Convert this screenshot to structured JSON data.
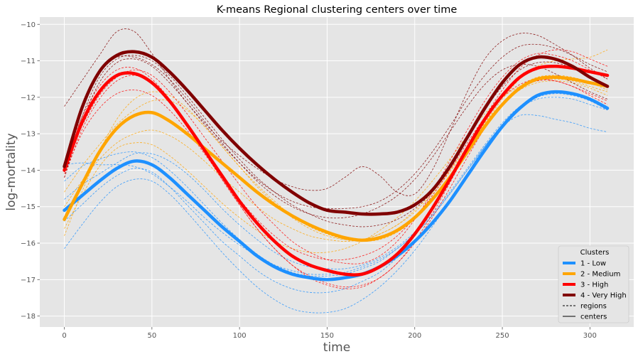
{
  "chart_data": {
    "type": "line",
    "title": "K-means Regional clustering centers over time",
    "xlabel": "time",
    "ylabel": "log-mortality",
    "xlim": [
      -14,
      325
    ],
    "ylim": [
      -18.3,
      -9.8
    ],
    "x_ticks": [
      0,
      50,
      100,
      150,
      200,
      250,
      300
    ],
    "y_ticks": [
      -10,
      -11,
      -12,
      -13,
      -14,
      -15,
      -16,
      -17,
      -18
    ],
    "x_tick_labels": [
      "0",
      "50",
      "100",
      "150",
      "200",
      "250",
      "300"
    ],
    "y_tick_labels": [
      "−10",
      "−11",
      "−12",
      "−13",
      "−14",
      "−15",
      "−16",
      "−17",
      "−18"
    ],
    "grid": true,
    "legend": {
      "title": "Clusters",
      "placement": "lower-right",
      "entries": [
        {
          "label": "1 - Low",
          "color": "#1e90ff",
          "style": "center"
        },
        {
          "label": "2 - Medium",
          "color": "#ffa500",
          "style": "center"
        },
        {
          "label": "3 - High",
          "color": "#ff0000",
          "style": "center"
        },
        {
          "label": "4 - Very High",
          "color": "#800000",
          "style": "center"
        },
        {
          "label": "regions",
          "color": "#000000",
          "style": "dashed"
        },
        {
          "label": "centers",
          "color": "#000000",
          "style": "solid"
        }
      ]
    },
    "x": [
      0,
      10,
      20,
      30,
      40,
      50,
      60,
      70,
      80,
      90,
      100,
      110,
      120,
      130,
      140,
      150,
      160,
      170,
      180,
      190,
      200,
      210,
      220,
      230,
      240,
      250,
      260,
      270,
      280,
      290,
      300,
      310
    ],
    "series": [
      {
        "name": "1 - Low",
        "kind": "center",
        "color": "#1e90ff",
        "values": [
          -15.1,
          -14.7,
          -14.3,
          -13.95,
          -13.75,
          -13.85,
          -14.2,
          -14.65,
          -15.1,
          -15.55,
          -15.95,
          -16.35,
          -16.65,
          -16.85,
          -16.95,
          -17.0,
          -16.95,
          -16.85,
          -16.65,
          -16.35,
          -15.95,
          -15.45,
          -14.85,
          -14.15,
          -13.45,
          -12.8,
          -12.3,
          -11.95,
          -11.85,
          -11.9,
          -12.05,
          -12.3
        ]
      },
      {
        "name": "2 - Medium",
        "kind": "center",
        "color": "#ffa500",
        "values": [
          -15.35,
          -14.4,
          -13.5,
          -12.85,
          -12.5,
          -12.42,
          -12.65,
          -13.0,
          -13.4,
          -13.8,
          -14.2,
          -14.6,
          -14.95,
          -15.25,
          -15.5,
          -15.7,
          -15.85,
          -15.92,
          -15.85,
          -15.65,
          -15.3,
          -14.8,
          -14.2,
          -13.5,
          -12.8,
          -12.2,
          -11.75,
          -11.5,
          -11.45,
          -11.5,
          -11.6,
          -11.7
        ]
      },
      {
        "name": "3 - High",
        "kind": "center",
        "color": "#ff0000",
        "values": [
          -14.0,
          -12.7,
          -11.85,
          -11.4,
          -11.35,
          -11.6,
          -12.1,
          -12.75,
          -13.45,
          -14.15,
          -14.85,
          -15.45,
          -15.95,
          -16.35,
          -16.6,
          -16.75,
          -16.85,
          -16.85,
          -16.65,
          -16.3,
          -15.75,
          -15.05,
          -14.25,
          -13.4,
          -12.6,
          -11.95,
          -11.45,
          -11.2,
          -11.15,
          -11.2,
          -11.3,
          -11.4
        ]
      },
      {
        "name": "4 - Very High",
        "kind": "center",
        "color": "#800000",
        "values": [
          -13.9,
          -12.3,
          -11.3,
          -10.85,
          -10.75,
          -10.9,
          -11.3,
          -11.8,
          -12.35,
          -12.9,
          -13.4,
          -13.85,
          -14.25,
          -14.6,
          -14.9,
          -15.1,
          -15.15,
          -15.2,
          -15.2,
          -15.15,
          -14.95,
          -14.55,
          -13.9,
          -13.1,
          -12.3,
          -11.6,
          -11.1,
          -10.9,
          -10.95,
          -11.15,
          -11.45,
          -11.7
        ]
      },
      {
        "name": "",
        "kind": "region",
        "color": "#1e90ff",
        "values": [
          -14.8,
          -14.4,
          -14.1,
          -13.8,
          -13.55,
          -13.55,
          -13.75,
          -14.1,
          -14.55,
          -15.05,
          -15.5,
          -15.9,
          -16.25,
          -16.5,
          -16.65,
          -16.7,
          -16.7,
          -16.6,
          -16.4,
          -16.1,
          -15.7,
          -15.2,
          -14.6,
          -13.95,
          -13.3,
          -12.7,
          -12.25,
          -11.95,
          -11.85,
          -11.9,
          -12.05,
          -12.25
        ]
      },
      {
        "name": "",
        "kind": "region",
        "color": "#1e90ff",
        "values": [
          -15.4,
          -14.95,
          -14.5,
          -14.15,
          -13.95,
          -14.05,
          -14.45,
          -14.95,
          -15.45,
          -15.95,
          -16.35,
          -16.75,
          -17.05,
          -17.25,
          -17.35,
          -17.35,
          -17.25,
          -17.05,
          -16.8,
          -16.4,
          -15.95,
          -15.4,
          -14.8,
          -14.1,
          -13.4,
          -12.8,
          -12.3,
          -12.0,
          -11.9,
          -11.95,
          -12.1,
          -12.35
        ]
      },
      {
        "name": "",
        "kind": "region",
        "color": "#1e90ff",
        "values": [
          -14.3,
          -13.9,
          -13.7,
          -13.55,
          -13.5,
          -13.65,
          -14.0,
          -14.45,
          -14.95,
          -15.45,
          -15.9,
          -16.3,
          -16.6,
          -16.8,
          -16.9,
          -16.9,
          -16.85,
          -16.7,
          -16.5,
          -16.15,
          -15.75,
          -15.25,
          -14.65,
          -14.0,
          -13.35,
          -12.75,
          -12.25,
          -11.95,
          -11.85,
          -11.9,
          -12.05,
          -12.3
        ]
      },
      {
        "name": "",
        "kind": "region",
        "color": "#1e90ff",
        "values": [
          -16.15,
          -15.5,
          -14.9,
          -14.45,
          -14.25,
          -14.3,
          -14.65,
          -15.15,
          -15.7,
          -16.25,
          -16.75,
          -17.2,
          -17.55,
          -17.8,
          -17.9,
          -17.9,
          -17.8,
          -17.55,
          -17.2,
          -16.75,
          -16.2,
          -15.55,
          -14.85,
          -14.1,
          -13.35,
          -12.8,
          -12.5,
          -12.5,
          -12.6,
          -12.7,
          -12.85,
          -12.95
        ]
      },
      {
        "name": "",
        "kind": "region",
        "color": "#1e90ff",
        "values": [
          -13.85,
          -13.8,
          -13.85,
          -13.85,
          -13.9,
          -14.1,
          -14.45,
          -14.85,
          -15.3,
          -15.7,
          -16.05,
          -16.35,
          -16.6,
          -16.75,
          -16.85,
          -16.85,
          -16.8,
          -16.65,
          -16.45,
          -16.15,
          -15.75,
          -15.25,
          -14.65,
          -14.0,
          -13.35,
          -12.75,
          -12.3,
          -12.05,
          -12.0,
          -12.05,
          -12.2,
          -12.35
        ]
      },
      {
        "name": "",
        "kind": "region",
        "color": "#ffa500",
        "values": [
          -15.8,
          -14.6,
          -13.5,
          -12.6,
          -12.05,
          -11.85,
          -11.95,
          -12.3,
          -12.8,
          -13.35,
          -13.9,
          -14.4,
          -14.85,
          -15.25,
          -15.55,
          -15.75,
          -15.9,
          -15.95,
          -15.9,
          -15.7,
          -15.35,
          -14.85,
          -14.2,
          -13.45,
          -12.7,
          -12.05,
          -11.5,
          -11.15,
          -11.0,
          -10.95,
          -10.9,
          -10.7
        ]
      },
      {
        "name": "",
        "kind": "region",
        "color": "#ffa500",
        "values": [
          -15.0,
          -14.3,
          -13.7,
          -13.25,
          -13.0,
          -12.9,
          -13.05,
          -13.35,
          -13.75,
          -14.2,
          -14.6,
          -15.0,
          -15.35,
          -15.6,
          -15.8,
          -15.9,
          -15.95,
          -15.9,
          -15.75,
          -15.5,
          -15.15,
          -14.65,
          -14.05,
          -13.4,
          -12.75,
          -12.2,
          -11.8,
          -11.6,
          -11.55,
          -11.6,
          -11.75,
          -11.95
        ]
      },
      {
        "name": "",
        "kind": "region",
        "color": "#ffa500",
        "values": [
          -14.6,
          -13.9,
          -13.3,
          -12.75,
          -12.35,
          -12.1,
          -12.1,
          -12.35,
          -12.8,
          -13.35,
          -13.9,
          -14.45,
          -14.9,
          -15.3,
          -15.6,
          -15.8,
          -15.9,
          -15.9,
          -15.75,
          -15.5,
          -15.1,
          -14.6,
          -14.0,
          -13.35,
          -12.7,
          -12.15,
          -11.7,
          -11.45,
          -11.4,
          -11.45,
          -11.6,
          -11.8
        ]
      },
      {
        "name": "",
        "kind": "region",
        "color": "#ffa500",
        "values": [
          -15.6,
          -14.7,
          -13.9,
          -13.4,
          -13.25,
          -13.3,
          -13.6,
          -14.0,
          -14.45,
          -14.9,
          -15.3,
          -15.65,
          -15.95,
          -16.15,
          -16.25,
          -16.25,
          -16.15,
          -15.95,
          -15.65,
          -15.3,
          -14.85,
          -14.3,
          -13.7,
          -13.05,
          -12.45,
          -12.0,
          -11.7,
          -11.55,
          -11.5,
          -11.55,
          -11.7,
          -11.85
        ]
      },
      {
        "name": "",
        "kind": "region",
        "color": "#ff0000",
        "values": [
          -14.2,
          -12.9,
          -12.05,
          -11.55,
          -11.4,
          -11.6,
          -12.1,
          -12.75,
          -13.5,
          -14.25,
          -14.95,
          -15.6,
          -16.15,
          -16.6,
          -16.95,
          -17.15,
          -17.25,
          -17.2,
          -16.95,
          -16.55,
          -15.95,
          -15.2,
          -14.35,
          -13.45,
          -12.55,
          -11.8,
          -11.2,
          -10.85,
          -10.7,
          -10.75,
          -10.95,
          -11.15
        ]
      },
      {
        "name": "",
        "kind": "region",
        "color": "#ff0000",
        "values": [
          -13.95,
          -12.8,
          -11.95,
          -11.45,
          -11.25,
          -11.4,
          -11.85,
          -12.45,
          -13.1,
          -13.75,
          -14.4,
          -15.0,
          -15.5,
          -15.95,
          -16.25,
          -16.45,
          -16.55,
          -16.55,
          -16.35,
          -15.95,
          -15.35,
          -14.6,
          -13.75,
          -12.9,
          -12.1,
          -11.45,
          -11.0,
          -10.8,
          -10.85,
          -11.0,
          -11.25,
          -11.5
        ]
      },
      {
        "name": "",
        "kind": "region",
        "color": "#ff0000",
        "values": [
          -13.8,
          -12.55,
          -11.7,
          -11.25,
          -11.2,
          -11.5,
          -12.05,
          -12.75,
          -13.5,
          -14.25,
          -14.95,
          -15.6,
          -16.15,
          -16.6,
          -16.9,
          -17.1,
          -17.2,
          -17.15,
          -16.95,
          -16.55,
          -16.0,
          -15.3,
          -14.5,
          -13.65,
          -12.85,
          -12.2,
          -11.75,
          -11.55,
          -11.55,
          -11.7,
          -11.9,
          -12.1
        ]
      },
      {
        "name": "",
        "kind": "region",
        "color": "#ff0000",
        "values": [
          -14.1,
          -13.0,
          -12.3,
          -11.9,
          -11.8,
          -11.95,
          -12.35,
          -12.9,
          -13.55,
          -14.2,
          -14.8,
          -15.35,
          -15.8,
          -16.15,
          -16.35,
          -16.45,
          -16.45,
          -16.35,
          -16.15,
          -15.8,
          -15.3,
          -14.7,
          -14.0,
          -13.25,
          -12.55,
          -12.0,
          -11.65,
          -11.5,
          -11.55,
          -11.7,
          -11.95,
          -12.2
        ]
      },
      {
        "name": "",
        "kind": "region",
        "color": "#800000",
        "values": [
          -12.25,
          -11.55,
          -10.85,
          -10.2,
          -10.2,
          -10.8,
          -11.5,
          -12.15,
          -12.7,
          -13.2,
          -13.6,
          -13.95,
          -14.25,
          -14.45,
          -14.55,
          -14.5,
          -14.2,
          -13.9,
          -14.15,
          -14.6,
          -14.65,
          -14.0,
          -12.95,
          -11.85,
          -10.95,
          -10.45,
          -10.25,
          -10.3,
          -10.55,
          -10.85,
          -11.2,
          -11.5
        ]
      },
      {
        "name": "",
        "kind": "region",
        "color": "#800000",
        "values": [
          -14.05,
          -12.55,
          -11.45,
          -10.95,
          -10.85,
          -11.0,
          -11.4,
          -11.95,
          -12.55,
          -13.15,
          -13.7,
          -14.2,
          -14.6,
          -14.95,
          -15.2,
          -15.4,
          -15.5,
          -15.55,
          -15.5,
          -15.35,
          -15.05,
          -14.6,
          -13.95,
          -13.15,
          -12.35,
          -11.7,
          -11.25,
          -11.05,
          -11.05,
          -11.2,
          -11.45,
          -11.75
        ]
      },
      {
        "name": "",
        "kind": "region",
        "color": "#800000",
        "values": [
          -14.2,
          -12.7,
          -11.6,
          -11.05,
          -10.95,
          -11.15,
          -11.6,
          -12.15,
          -12.75,
          -13.3,
          -13.8,
          -14.25,
          -14.6,
          -14.85,
          -15.0,
          -15.05,
          -15.05,
          -15.0,
          -14.85,
          -14.55,
          -14.1,
          -13.5,
          -12.8,
          -12.05,
          -11.4,
          -10.9,
          -10.6,
          -10.55,
          -10.65,
          -10.85,
          -11.1,
          -11.3
        ]
      },
      {
        "name": "",
        "kind": "region",
        "color": "#800000",
        "values": [
          -13.85,
          -12.25,
          -11.25,
          -10.9,
          -10.9,
          -11.1,
          -11.5,
          -12.05,
          -12.65,
          -13.25,
          -13.8,
          -14.3,
          -14.7,
          -15.0,
          -15.2,
          -15.3,
          -15.3,
          -15.2,
          -15.0,
          -14.7,
          -14.25,
          -13.65,
          -12.95,
          -12.25,
          -11.65,
          -11.25,
          -11.1,
          -11.15,
          -11.35,
          -11.6,
          -11.85,
          -12.05
        ]
      }
    ]
  }
}
